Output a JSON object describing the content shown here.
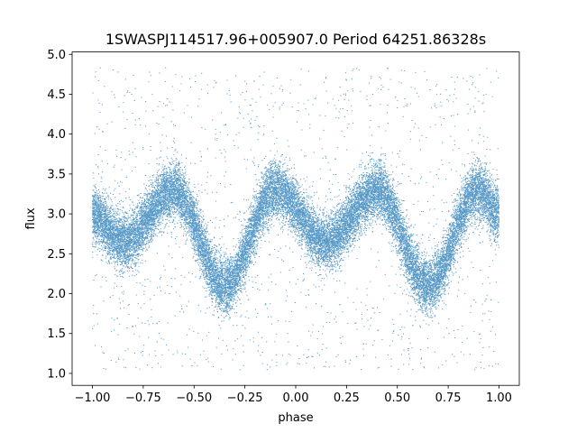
{
  "chart_data": {
    "type": "scatter",
    "title": "1SWASPJ114517.96+005907.0 Period 64251.86328s",
    "xlabel": "phase",
    "ylabel": "flux",
    "xlim": [
      -1.1,
      1.1
    ],
    "ylim": [
      0.85,
      5.03
    ],
    "x_ticks": [
      -1.0,
      -0.75,
      -0.5,
      -0.25,
      0.0,
      0.25,
      0.5,
      0.75,
      1.0
    ],
    "x_tick_labels": [
      "−1.00",
      "−0.75",
      "−0.50",
      "−0.25",
      "0.00",
      "0.25",
      "0.50",
      "0.75",
      "1.00"
    ],
    "y_ticks": [
      1.0,
      1.5,
      2.0,
      2.5,
      3.0,
      3.5,
      4.0,
      4.5,
      5.0
    ],
    "y_tick_labels": [
      "1.0",
      "1.5",
      "2.0",
      "2.5",
      "3.0",
      "3.5",
      "4.0",
      "4.5",
      "5.0"
    ],
    "grid": false,
    "point_color": "#1f77b4",
    "phase_range": [
      -1.0,
      1.0
    ],
    "curve_key_points": [
      {
        "phase": -1.0,
        "flux": 3.0
      },
      {
        "phase": -0.85,
        "flux": 2.65
      },
      {
        "phase": -0.6,
        "flux": 3.3
      },
      {
        "phase": -0.35,
        "flux": 2.1
      },
      {
        "phase": -0.1,
        "flux": 3.3
      },
      {
        "phase": 0.15,
        "flux": 2.65
      },
      {
        "phase": 0.4,
        "flux": 3.3
      },
      {
        "phase": 0.65,
        "flux": 2.1
      },
      {
        "phase": 0.9,
        "flux": 3.3
      },
      {
        "phase": 1.0,
        "flux": 3.0
      }
    ],
    "point_count": 26000,
    "scatter_sigma": 0.17,
    "outlier_fraction": 0.06,
    "outlier_flux_range": [
      1.05,
      4.85
    ]
  }
}
